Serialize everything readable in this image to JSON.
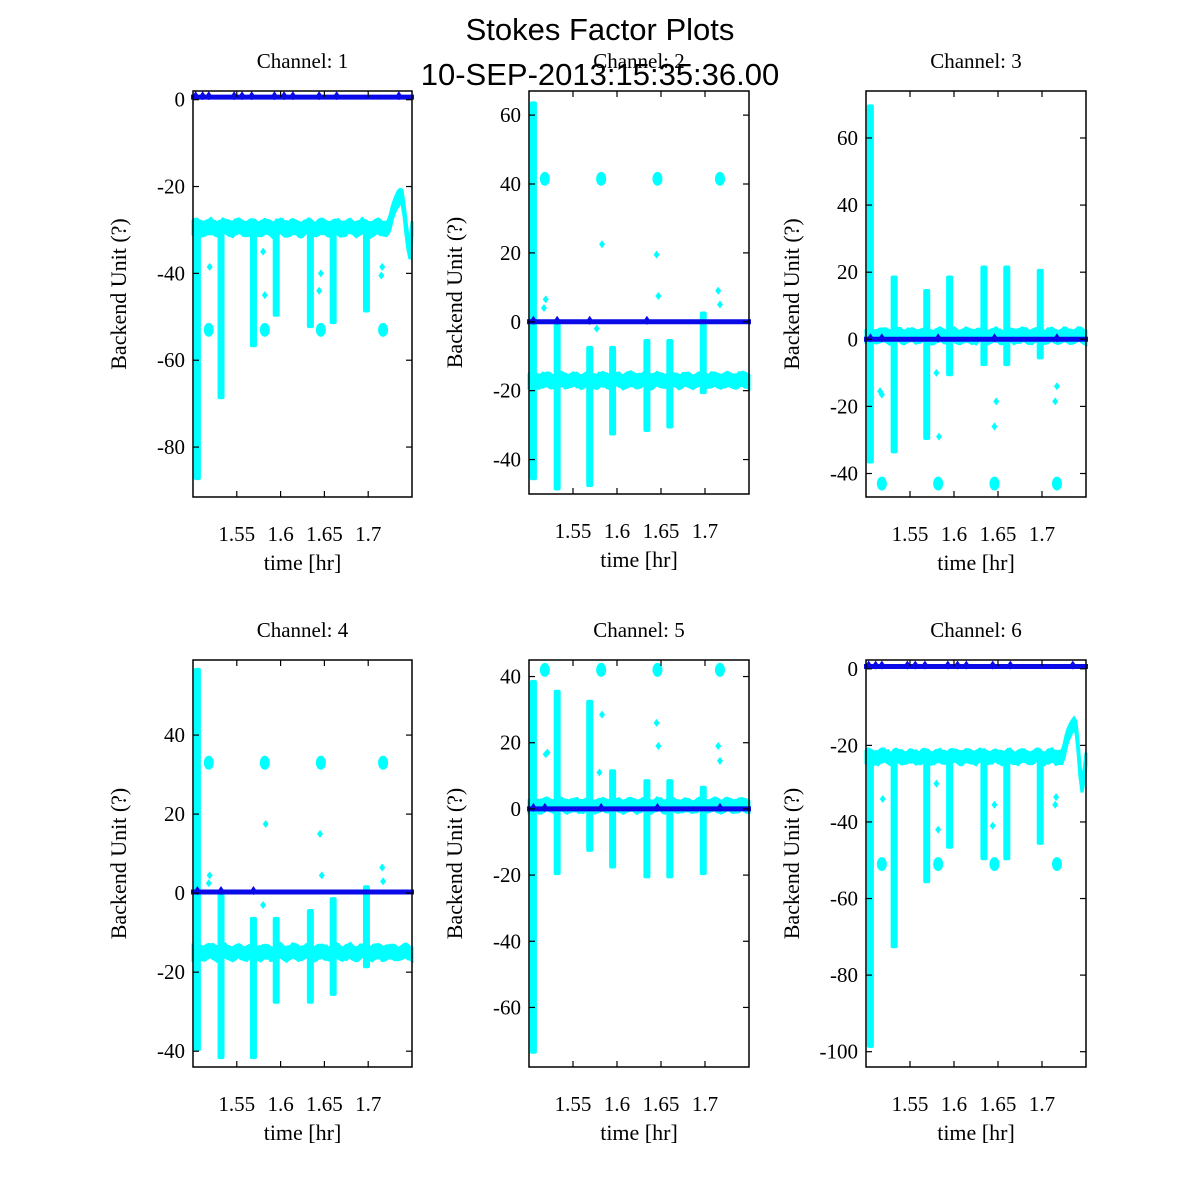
{
  "figure": {
    "title_line1": "Stokes Factor Plots",
    "title_line2": "10-SEP-2013:15:35:36.00"
  },
  "colors": {
    "cyan_series": "#00ffff",
    "blue_series": "#0a0ae8",
    "axes": "#000000"
  },
  "chart_data": [
    {
      "type": "scatter",
      "title": "Channel: 1",
      "xlabel": "time [hr]",
      "ylabel": "Backend Unit (?)",
      "xlim": [
        1.5,
        1.75
      ],
      "ylim": [
        -91.5,
        2
      ],
      "xticks": [
        1.55,
        1.6,
        1.65,
        1.7
      ],
      "xtick_labels": [
        "1.55",
        "1.6",
        "1.65",
        "1.7"
      ],
      "yticks": [
        0,
        -20,
        -40,
        -60,
        -80
      ],
      "ytick_labels": [
        "0",
        "-20",
        "-40",
        "-60",
        "-80"
      ],
      "series": [
        {
          "name": "cyan",
          "baseline": -29.5,
          "noise": 1.3,
          "spikes": [
            [
              1.505,
              -29.5,
              -87.6
            ],
            [
              1.532,
              -29.5,
              -69
            ],
            [
              1.569,
              -29.5,
              -57
            ],
            [
              1.595,
              -29.5,
              -50
            ],
            [
              1.634,
              -29.5,
              -52.6
            ],
            [
              1.66,
              -29.5,
              -51.7
            ],
            [
              1.698,
              -29.5,
              -49
            ]
          ],
          "clusters": [
            [
              1.518,
              -53
            ],
            [
              1.582,
              -53
            ],
            [
              1.646,
              -53
            ],
            [
              1.717,
              -53
            ]
          ],
          "strays": [
            [
              1.519,
              -38.5
            ],
            [
              1.58,
              -35
            ],
            [
              1.582,
              -45
            ],
            [
              1.646,
              -40
            ],
            [
              1.644,
              -44
            ],
            [
              1.716,
              -38.5
            ],
            [
              1.715,
              -40.5
            ]
          ],
          "bump": {
            "start": 1.724,
            "peak_x": 1.737,
            "peak": -22,
            "trough_x": 1.748,
            "trough": -35,
            "end": 1.75,
            "end_value": -29
          }
        },
        {
          "name": "blue",
          "level": 0.6,
          "markers": [
            1.503,
            1.511,
            1.518,
            1.547,
            1.556,
            1.567,
            1.593,
            1.604,
            1.614,
            1.644,
            1.664,
            1.735
          ]
        }
      ]
    },
    {
      "type": "scatter",
      "title": "Channel: 2",
      "xlabel": "time [hr]",
      "ylabel": "Backend Unit (?)",
      "xlim": [
        1.5,
        1.75
      ],
      "ylim": [
        -50,
        67
      ],
      "xticks": [
        1.55,
        1.6,
        1.65,
        1.7
      ],
      "xtick_labels": [
        "1.55",
        "1.6",
        "1.65",
        "1.7"
      ],
      "yticks": [
        60,
        40,
        20,
        0,
        -20,
        -40
      ],
      "ytick_labels": [
        "60",
        "40",
        "20",
        "0",
        "-20",
        "-40"
      ],
      "series": [
        {
          "name": "cyan",
          "baseline": -17,
          "noise": 1.6,
          "spikes": [
            [
              1.505,
              64,
              -46
            ],
            [
              1.532,
              0,
              -49
            ],
            [
              1.569,
              -7,
              -48
            ],
            [
              1.595,
              -7,
              -33
            ],
            [
              1.634,
              -5,
              -32
            ],
            [
              1.66,
              -5,
              -31
            ],
            [
              1.698,
              3,
              -21
            ]
          ],
          "clusters": [
            [
              1.518,
              41.5
            ],
            [
              1.582,
              41.5
            ],
            [
              1.646,
              41.5
            ],
            [
              1.717,
              41.5
            ]
          ],
          "strays": [
            [
              1.519,
              6.5
            ],
            [
              1.517,
              4
            ],
            [
              1.583,
              22.5
            ],
            [
              1.577,
              -2
            ],
            [
              1.645,
              19.5
            ],
            [
              1.647,
              7.5
            ],
            [
              1.715,
              9
            ],
            [
              1.717,
              5
            ]
          ],
          "bump": null
        },
        {
          "name": "blue",
          "level": 0,
          "markers": [
            1.505,
            1.532,
            1.569,
            1.634
          ]
        }
      ]
    },
    {
      "type": "scatter",
      "title": "Channel: 3",
      "xlabel": "time [hr]",
      "ylabel": "Backend Unit (?)",
      "xlim": [
        1.5,
        1.75
      ],
      "ylim": [
        -47,
        74
      ],
      "xticks": [
        1.55,
        1.6,
        1.65,
        1.7
      ],
      "xtick_labels": [
        "1.55",
        "1.6",
        "1.65",
        "1.7"
      ],
      "yticks": [
        60,
        40,
        20,
        0,
        -20,
        -40
      ],
      "ytick_labels": [
        "60",
        "40",
        "20",
        "0",
        "-20",
        "-40"
      ],
      "series": [
        {
          "name": "cyan",
          "baseline": 1,
          "noise": 1.6,
          "spikes": [
            [
              1.505,
              70,
              -37
            ],
            [
              1.532,
              19,
              -34
            ],
            [
              1.569,
              15,
              -30
            ],
            [
              1.595,
              19,
              -11
            ],
            [
              1.634,
              22,
              -8
            ],
            [
              1.66,
              22,
              -8
            ],
            [
              1.698,
              21,
              -6
            ]
          ],
          "clusters": [
            [
              1.518,
              -43
            ],
            [
              1.582,
              -43
            ],
            [
              1.646,
              -43
            ],
            [
              1.717,
              -43
            ]
          ],
          "strays": [
            [
              1.516,
              -15.5
            ],
            [
              1.518,
              -16.5
            ],
            [
              1.58,
              -10
            ],
            [
              1.583,
              -29
            ],
            [
              1.648,
              -18.5
            ],
            [
              1.646,
              -26
            ],
            [
              1.717,
              -14
            ],
            [
              1.715,
              -18.5
            ]
          ],
          "bump": null
        },
        {
          "name": "blue",
          "level": 0,
          "markers": [
            1.505,
            1.518,
            1.582,
            1.646,
            1.717
          ]
        }
      ]
    },
    {
      "type": "scatter",
      "title": "Channel: 4",
      "xlabel": "time [hr]",
      "ylabel": "Backend Unit (?)",
      "xlim": [
        1.5,
        1.75
      ],
      "ylim": [
        -44,
        59
      ],
      "xticks": [
        1.55,
        1.6,
        1.65,
        1.7
      ],
      "xtick_labels": [
        "1.55",
        "1.6",
        "1.65",
        "1.7"
      ],
      "yticks": [
        40,
        20,
        0,
        -20,
        -40
      ],
      "ytick_labels": [
        "40",
        "20",
        "0",
        "-20",
        "-40"
      ],
      "series": [
        {
          "name": "cyan",
          "baseline": -15,
          "noise": 1.4,
          "spikes": [
            [
              1.505,
              57,
              -40
            ],
            [
              1.532,
              0,
              -42
            ],
            [
              1.569,
              -6,
              -42
            ],
            [
              1.595,
              -6,
              -28
            ],
            [
              1.634,
              -4,
              -28
            ],
            [
              1.66,
              -1,
              -26
            ],
            [
              1.698,
              2,
              -19
            ]
          ],
          "clusters": [
            [
              1.518,
              33
            ],
            [
              1.582,
              33
            ],
            [
              1.646,
              33
            ],
            [
              1.717,
              33
            ]
          ],
          "strays": [
            [
              1.519,
              4.5
            ],
            [
              1.518,
              2.5
            ],
            [
              1.583,
              17.5
            ],
            [
              1.58,
              -3
            ],
            [
              1.645,
              15
            ],
            [
              1.647,
              4.5
            ],
            [
              1.716,
              6.5
            ],
            [
              1.717,
              3
            ]
          ],
          "bump": null
        },
        {
          "name": "blue",
          "level": 0.3,
          "markers": [
            1.505,
            1.532,
            1.569
          ]
        }
      ]
    },
    {
      "type": "scatter",
      "title": "Channel: 5",
      "xlabel": "time [hr]",
      "ylabel": "Backend Unit (?)",
      "xlim": [
        1.5,
        1.75
      ],
      "ylim": [
        -78,
        45
      ],
      "xticks": [
        1.55,
        1.6,
        1.65,
        1.7
      ],
      "xtick_labels": [
        "1.55",
        "1.6",
        "1.65",
        "1.7"
      ],
      "yticks": [
        40,
        20,
        0,
        -20,
        -40,
        -60
      ],
      "ytick_labels": [
        "40",
        "20",
        "0",
        "-20",
        "-40",
        "-60"
      ],
      "series": [
        {
          "name": "cyan",
          "baseline": 1,
          "noise": 1.5,
          "spikes": [
            [
              1.505,
              39,
              -74
            ],
            [
              1.532,
              36,
              -20
            ],
            [
              1.569,
              33,
              -13
            ],
            [
              1.595,
              12,
              -18
            ],
            [
              1.634,
              9,
              -21
            ],
            [
              1.66,
              9,
              -21
            ],
            [
              1.698,
              7,
              -20
            ]
          ],
          "clusters": [
            [
              1.518,
              42
            ],
            [
              1.582,
              42
            ],
            [
              1.646,
              42
            ],
            [
              1.717,
              42
            ]
          ],
          "strays": [
            [
              1.519,
              16.5
            ],
            [
              1.521,
              17
            ],
            [
              1.583,
              28.5
            ],
            [
              1.58,
              11
            ],
            [
              1.645,
              26
            ],
            [
              1.647,
              19
            ],
            [
              1.715,
              19
            ],
            [
              1.717,
              14.5
            ]
          ],
          "bump": null
        },
        {
          "name": "blue",
          "level": 0,
          "markers": [
            1.505,
            1.518,
            1.582,
            1.646,
            1.717
          ]
        }
      ]
    },
    {
      "type": "scatter",
      "title": "Channel: 6",
      "xlabel": "time [hr]",
      "ylabel": "Backend Unit (?)",
      "xlim": [
        1.5,
        1.75
      ],
      "ylim": [
        -104,
        2.3
      ],
      "xticks": [
        1.55,
        1.6,
        1.65,
        1.7
      ],
      "xtick_labels": [
        "1.55",
        "1.6",
        "1.65",
        "1.7"
      ],
      "yticks": [
        0,
        -20,
        -40,
        -60,
        -80,
        -100
      ],
      "ytick_labels": [
        "0",
        "-20",
        "-40",
        "-60",
        "-80",
        "-100"
      ],
      "series": [
        {
          "name": "cyan",
          "baseline": -23,
          "noise": 1.3,
          "spikes": [
            [
              1.505,
              -23,
              -99
            ],
            [
              1.532,
              -23,
              -73
            ],
            [
              1.569,
              -23,
              -56
            ],
            [
              1.595,
              -23,
              -47
            ],
            [
              1.634,
              -23,
              -50
            ],
            [
              1.66,
              -23,
              -50
            ],
            [
              1.698,
              -23,
              -46
            ]
          ],
          "clusters": [
            [
              1.518,
              -51
            ],
            [
              1.582,
              -51
            ],
            [
              1.646,
              -51
            ],
            [
              1.717,
              -51
            ]
          ],
          "strays": [
            [
              1.519,
              -34
            ],
            [
              1.58,
              -30
            ],
            [
              1.582,
              -42
            ],
            [
              1.646,
              -35.5
            ],
            [
              1.644,
              -41
            ],
            [
              1.716,
              -33.5
            ],
            [
              1.715,
              -35.5
            ]
          ],
          "bump": {
            "start": 1.724,
            "peak_x": 1.737,
            "peak": -14,
            "trough_x": 1.746,
            "trough": -31,
            "end": 1.75,
            "end_value": -23
          }
        },
        {
          "name": "blue",
          "level": 0.6,
          "markers": [
            1.503,
            1.511,
            1.518,
            1.547,
            1.556,
            1.567,
            1.593,
            1.604,
            1.614,
            1.644,
            1.664,
            1.735
          ]
        }
      ]
    }
  ]
}
